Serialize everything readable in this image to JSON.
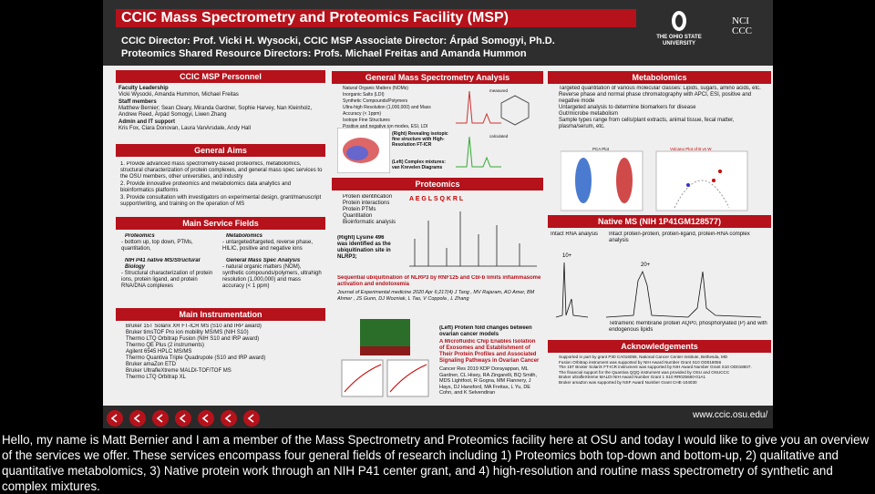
{
  "header": {
    "title": "CCIC Mass Spectrometry and Proteomics Facility (MSP)",
    "line1": "CCIC Director: Prof. Vicki H. Wysocki, CCIC MSP Associate Director: Árpád Somogyi, Ph.D.",
    "line2": "Proteomics Shared Resource Directors: Profs. Michael Freitas and Amanda Hummon",
    "osu_name": "THE OHIO STATE",
    "osu_sub": "UNIVERSITY",
    "nci": "NCI CCC"
  },
  "personnel": {
    "title": "CCIC MSP Personnel",
    "groups": [
      {
        "heading": "Faculty Leadership",
        "text": "Vicki Wysocki, Amanda Hummon, Michael Freitas"
      },
      {
        "heading": "Staff members",
        "text": "Matthew Bernier; Sean Cleary, Miranda Gardner, Sophie Harvey, Nan Kleinholz, Andrew Reed, Árpád Somogyi, Liwen Zhang"
      },
      {
        "heading": "Admin and IT support",
        "text": "Kris Fox, Ciara Donovan, Laura VanArsdale, Andy Hall"
      }
    ]
  },
  "general_aims": {
    "title": "General Aims",
    "items": [
      "1. Provide advanced mass spectrometry-based proteomics, metabolomics, structural characterization of protein complexes, and general mass spec services to the OSU members, other universities, and industry",
      "2. Provide innovative proteomics and metabolomics data analytics and bioinformatics platforms",
      "3. Provide consultation with investigators on experimental design, grant/manuscript support/writing, and training on the operation of MS"
    ]
  },
  "service_fields": {
    "title": "Main Service Fields",
    "fields": [
      {
        "heading": "Proteomics",
        "text": "- bottom up, top down, PTMs, quantitation,"
      },
      {
        "heading": "Metabolomics",
        "text": "- untargeted/targeted, reverse phase, HILIC, positive and negative ions"
      },
      {
        "heading": "NIH P41 native MS/Structural Biology",
        "text": "- Structural characterization of protein ions, protein ligand, and protein RNA/DNA complexes"
      },
      {
        "heading": "General Mass Spec Analysis",
        "text": "- natural organic matters (NOM), synthetic compounds/polymers, ultrahigh resolution (1,000,000) and mass accuracy (< 1 ppm)"
      }
    ]
  },
  "instrumentation": {
    "title": "Main Instrumentation",
    "items": [
      "Bruker 15T Solarix XR FT-ICR MS (S10 and IRP award)",
      "Bruker timsTOF Pro ion mobility MS/MS (NIH S10)",
      "Thermo LTQ Orbitrap Fusion (NIH S10 and IRP award)",
      "Thermo QE Plus (2 instruments)",
      "Agilent 6545 HPLC MS/MS",
      "Thermo Quantiva Triple Quadrupole (S10 and IRP award)",
      "Bruker amaZon ETD",
      "Bruker UltrafleXtreme MALDI-TOF/TOF MS",
      "Thermo LTQ Orbitrap XL"
    ]
  },
  "gms_analysis": {
    "title": "General Mass Spectrometry Analysis",
    "items": [
      "Natural Organic Matters (NOMs)",
      "Inorganic Salts (LDI)",
      "Synthetic Compounds/Polymers",
      "Ultra-high Resolution (1,000,000) and Mass Accuracy (< 1ppm)",
      "Isotope Fine Structures",
      "Positive and negative ion modes, ESI, LDI"
    ],
    "caption_right": "(Right) Revealing isotopic fine structure with High-Resolution FT-ICR",
    "caption_left": "(Left) Complex mixtures: van Krevelen Diagrams",
    "measured": "measured",
    "calculated": "calculated"
  },
  "proteomics": {
    "title": "Proteomics",
    "items": [
      "Protein identification",
      "Protein interactions",
      "Protein PTMs",
      "Quantitation",
      "Bioinformatic analysis"
    ],
    "caption": "(Right) Lysine 496 was identified as the ubiquitination site in NLRP3;",
    "paper_title": "Sequential ubiquitination of NLRP3 by RNF125 and Cbl-b limits inflammasome activation and endotoxemia",
    "paper_cite": "Journal of Experimental medicine 2020 Apr 6;217(4) J Tang , MV Rajaram, AO Amer, BM Ahmer , JS Gunn, DJ Wozniak, L Tao, V Coppola , L Zhang",
    "caption2": "(Left) Protein fold changes between ovarian cancer models",
    "paper2_title": "A Microfluidic Chip Enables Isolation of Exosomes and Establishment of Their Protein Profiles and Associated Signaling Pathways in Ovarian Cancer",
    "paper2_cite": "Cancer Res 2019 KDP Dorayappan, ML Gardner, CL Hisey, RA Zingarelli, BQ Smith, MDS Lightfoot, R Gogna, MM Flannery, J Hays, DJ Hansford, MA Freitas, L Yu, DE Cohn, and K Selvendiran"
  },
  "metabolomics": {
    "title": "Metabolomics",
    "items": [
      "Targeted quantitation of various molecular classes: Lipids, sugars, amino acids, etc.",
      "Reverse phase and normal phase chromatography with APCI, ESI, positive and negative mode",
      "Untargeted analysis to determine biomarkers for disease",
      "Gut/microbe metabolism",
      "Sample types range from cells/plant extracts, animal tissue, fecal matter, plasma/serum, etc."
    ],
    "pca": "PCA Plot",
    "volcano": "Volcano Plot of B vs W"
  },
  "native_ms": {
    "title": "Native MS (NIH 1P41GM128577)",
    "left": "Intact RNA analysis",
    "right": "Intact protein-protein, protein-ligand, protein-RNA complex analysis",
    "caption": "Tetrameric membrane protein AQP0, phosphorylated (P) and with endogenous lipids",
    "peak1": "10+",
    "peak2": "20+"
  },
  "acknowledgements": {
    "title": "Acknowledgements",
    "items": [
      "Supported in part by grant P30 CA016058, National Cancer Center Institute, Bethesda, MD",
      "Fusion Orbitrap instrument was supported by NIH Award Number Grant S10 OD018056",
      "The 15T Bruker SolariX FT-ICR instrument was supported by NIH Award Number Grant S10 OD018507.",
      "The financial support for the Quantiva QQQ instrument was provided by OSU and OSUCCC",
      "Bruker ultrafleXtreme MALDI NIH Award Number Grant 1 S10 RR025660-01A1",
      "Bruker amaZon was supported by NSF Award Number Grant CHE-104030"
    ]
  },
  "footer": {
    "url": "www.ccic.osu.edu/"
  },
  "subtitle": "Hello, my name is Matt Bernier and I am a member of the Mass Spectrometry and Proteomics facility here at OSU and today I would like to give you an overview of the services we offer. These services encompass four general fields of research including 1) Proteomics both top-down and bottom-up, 2) qualitative and quantitative metabolomics, 3) Native protein work through an NIH P41 center grant, and 4) high-resolution and routine mass spectrometry of synthetic and complex mixtures."
}
